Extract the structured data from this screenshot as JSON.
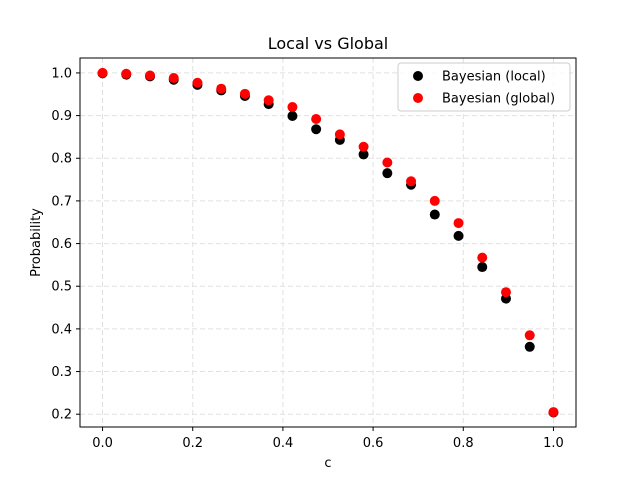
{
  "chart_data": {
    "type": "scatter",
    "title": "Local vs Global",
    "xlabel": "c",
    "ylabel": "Probability",
    "xlim": [
      -0.05,
      1.05
    ],
    "ylim": [
      0.17,
      1.035
    ],
    "xticks": [
      0.0,
      0.2,
      0.4,
      0.6,
      0.8,
      1.0
    ],
    "xtick_labels": [
      "0.0",
      "0.2",
      "0.4",
      "0.6",
      "0.8",
      "1.0"
    ],
    "yticks": [
      0.2,
      0.3,
      0.4,
      0.5,
      0.6,
      0.7,
      0.8,
      0.9,
      1.0
    ],
    "ytick_labels": [
      "0.2",
      "0.3",
      "0.4",
      "0.5",
      "0.6",
      "0.7",
      "0.8",
      "0.9",
      "1.0"
    ],
    "grid": true,
    "legend_position": "top-right",
    "series": [
      {
        "name": "Bayesian (local)",
        "color": "#000000",
        "x": [
          0.0,
          0.0526,
          0.1053,
          0.1579,
          0.2105,
          0.2632,
          0.3158,
          0.3684,
          0.4211,
          0.4737,
          0.5263,
          0.5789,
          0.6316,
          0.6842,
          0.7368,
          0.7895,
          0.8421,
          0.8947,
          0.9474,
          1.0
        ],
        "y": [
          0.999,
          0.996,
          0.992,
          0.984,
          0.972,
          0.959,
          0.946,
          0.927,
          0.899,
          0.868,
          0.843,
          0.809,
          0.765,
          0.738,
          0.668,
          0.618,
          0.545,
          0.471,
          0.358,
          0.204
        ]
      },
      {
        "name": "Bayesian (global)",
        "color": "#ff0000",
        "x": [
          0.0,
          0.0526,
          0.1053,
          0.1579,
          0.2105,
          0.2632,
          0.3158,
          0.3684,
          0.4211,
          0.4737,
          0.5263,
          0.5789,
          0.6316,
          0.6842,
          0.7368,
          0.7895,
          0.8421,
          0.8947,
          0.9474,
          1.0
        ],
        "y": [
          1.0,
          0.998,
          0.994,
          0.988,
          0.977,
          0.963,
          0.951,
          0.936,
          0.92,
          0.892,
          0.856,
          0.827,
          0.79,
          0.746,
          0.7,
          0.648,
          0.567,
          0.486,
          0.385,
          0.205
        ]
      }
    ]
  }
}
